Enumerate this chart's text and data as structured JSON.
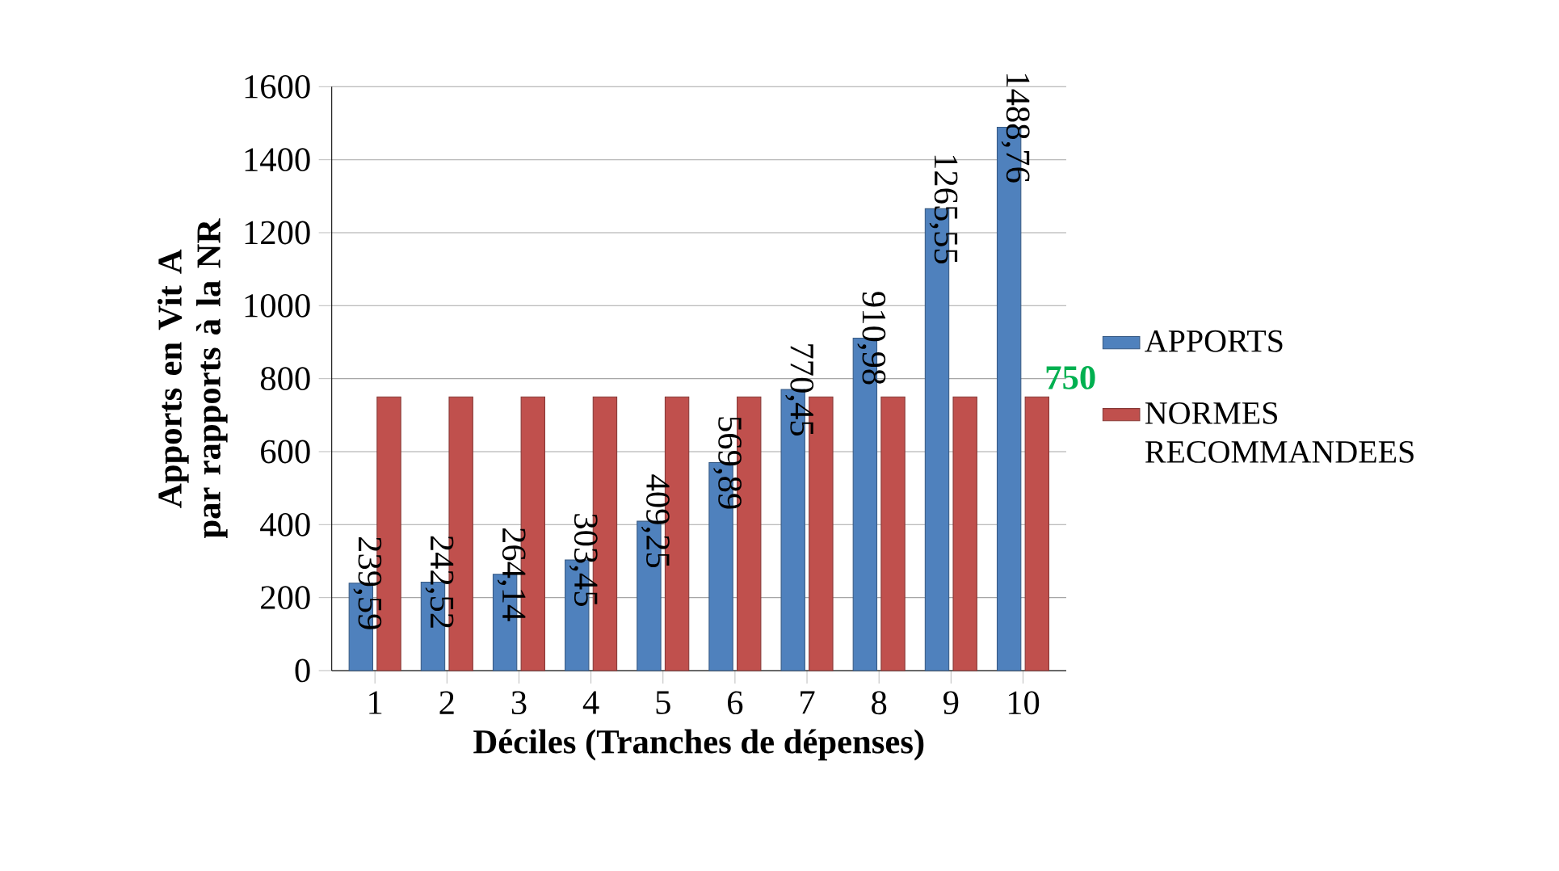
{
  "chart_data": {
    "type": "bar",
    "xlabel": "Déciles (Tranches de dépenses)",
    "ylabel": "Apports en Vit A par rapports à la NR",
    "categories": [
      "1",
      "2",
      "3",
      "4",
      "5",
      "6",
      "7",
      "8",
      "9",
      "10"
    ],
    "series": [
      {
        "name": "APPORTS",
        "color": "#4f81bd",
        "values": [
          239.59,
          242.52,
          264.14,
          303.45,
          409.25,
          569.89,
          770.45,
          910.98,
          1265.55,
          1488.76
        ],
        "value_labels": [
          "239,59",
          "242,52",
          "264,14",
          "303,45",
          "409,25",
          "569,89",
          "770,45",
          "910,98",
          "1265,55",
          "1488,76"
        ]
      },
      {
        "name": "NORMES RECOMMANDEES",
        "color": "#c0504d",
        "values": [
          750,
          750,
          750,
          750,
          750,
          750,
          750,
          750,
          750,
          750
        ],
        "value_labels": [
          null,
          null,
          null,
          null,
          null,
          null,
          null,
          null,
          null,
          "750"
        ]
      }
    ],
    "ylim": [
      0,
      1600
    ],
    "yticks": [
      0,
      200,
      400,
      600,
      800,
      1000,
      1200,
      1400,
      1600
    ],
    "grid": "y",
    "legend": "right"
  }
}
